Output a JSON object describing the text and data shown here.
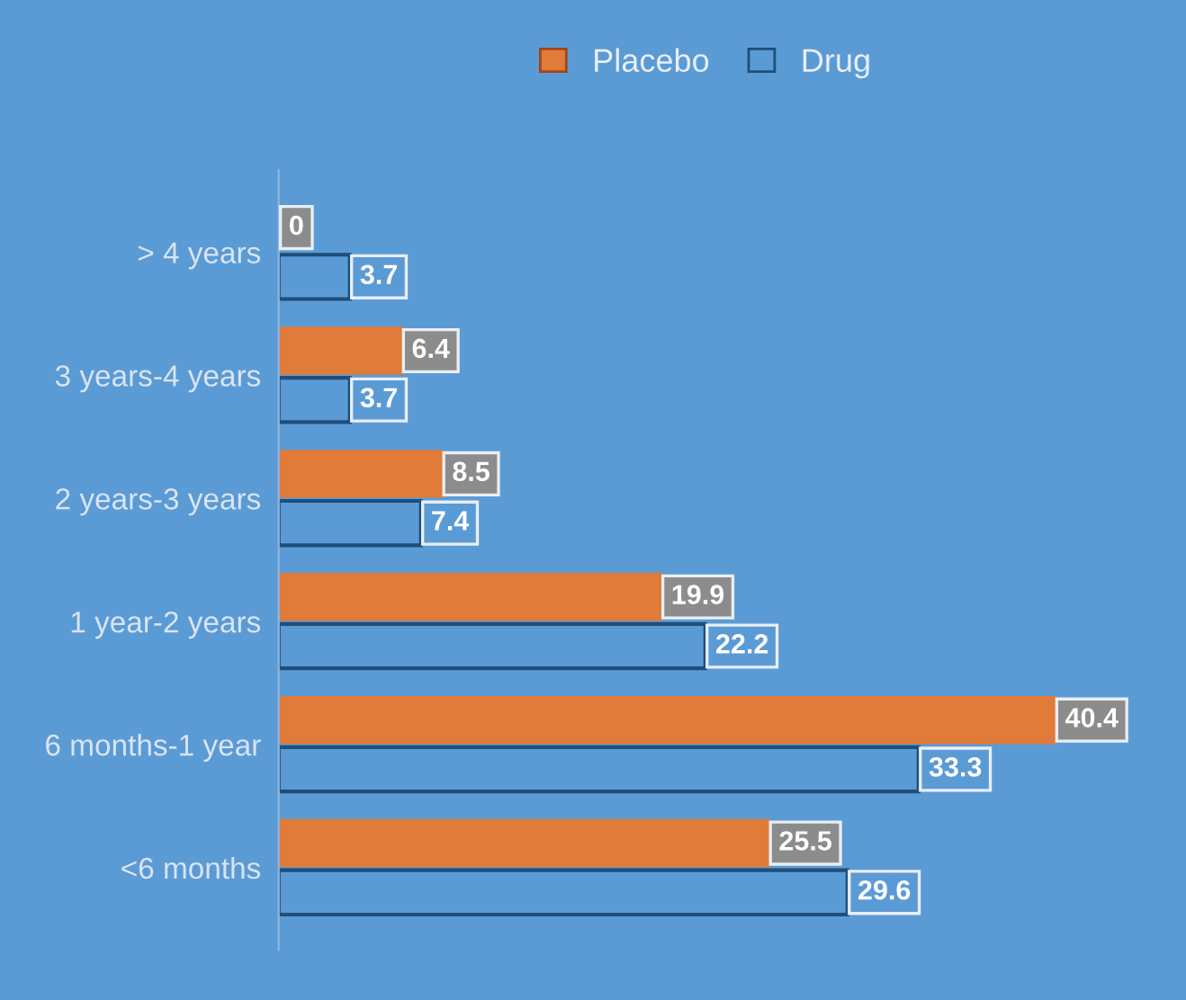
{
  "chart_data": {
    "type": "bar",
    "orientation": "horizontal",
    "categories": [
      "> 4 years",
      "3 years-4 years",
      "2 years-3 years",
      "1 year-2 years",
      "6 months-1 year",
      "<6 months"
    ],
    "series": [
      {
        "name": "Placebo",
        "color": "#e07b39",
        "values": [
          0,
          6.4,
          8.5,
          19.9,
          40.4,
          25.5
        ]
      },
      {
        "name": "Drug",
        "color": "#5b9bd5",
        "values": [
          3.7,
          3.7,
          7.4,
          22.2,
          33.3,
          29.6
        ]
      }
    ],
    "data_labels": true,
    "legend": "top",
    "tick_labels": "y",
    "grid": false
  }
}
